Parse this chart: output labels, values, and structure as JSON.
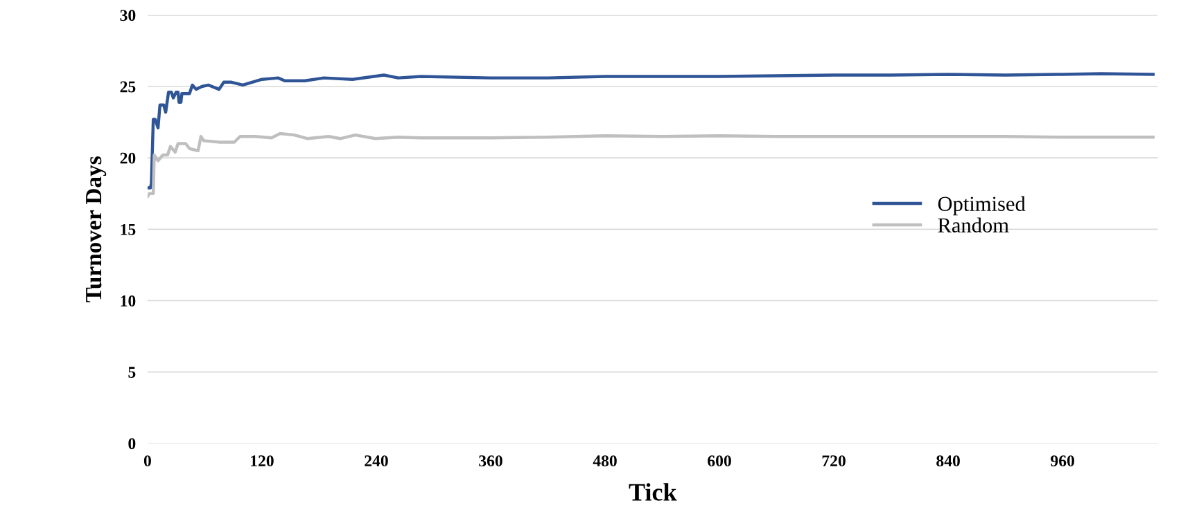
{
  "chart_data": {
    "type": "line",
    "xlabel": "Tick",
    "ylabel": "Turnover Days",
    "xlim": [
      0,
      1060
    ],
    "ylim": [
      0,
      30
    ],
    "xticks": [
      0,
      120,
      240,
      360,
      480,
      600,
      720,
      840,
      960
    ],
    "yticks": [
      0,
      5,
      10,
      15,
      20,
      25,
      30
    ],
    "grid": "y",
    "legend": "right",
    "marker": "none",
    "line_style": "solid",
    "series": [
      {
        "name": "Optimised",
        "color": "#2f5597",
        "x": [
          0,
          3,
          4,
          6,
          8,
          11,
          13,
          17,
          19,
          22,
          25,
          27,
          30,
          32,
          33,
          35,
          36,
          44,
          47,
          51,
          57,
          64,
          75,
          80,
          88,
          100,
          120,
          137,
          144,
          165,
          185,
          215,
          248,
          263,
          287,
          360,
          420,
          480,
          540,
          600,
          660,
          720,
          780,
          840,
          900,
          960,
          1000,
          1055
        ],
        "values": [
          17.9,
          17.9,
          18.2,
          22.7,
          22.7,
          22.1,
          23.7,
          23.7,
          23.2,
          24.6,
          24.6,
          24.2,
          24.6,
          24.6,
          23.9,
          23.9,
          24.5,
          24.5,
          25.1,
          24.8,
          25.0,
          25.1,
          24.8,
          25.3,
          25.3,
          25.1,
          25.5,
          25.6,
          25.4,
          25.4,
          25.6,
          25.5,
          25.8,
          25.6,
          25.7,
          25.6,
          25.6,
          25.7,
          25.7,
          25.7,
          25.75,
          25.8,
          25.8,
          25.85,
          25.8,
          25.85,
          25.9,
          25.85
        ]
      },
      {
        "name": "Random",
        "color": "#bfbfbf",
        "x": [
          0,
          2,
          6,
          7,
          11,
          16,
          21,
          24,
          29,
          32,
          40,
          44,
          53,
          56,
          59,
          76,
          91,
          97,
          113,
          130,
          139,
          154,
          168,
          190,
          202,
          218,
          239,
          263,
          287,
          360,
          420,
          480,
          540,
          600,
          660,
          720,
          780,
          840,
          900,
          960,
          1000,
          1055
        ],
        "values": [
          17.3,
          17.5,
          17.5,
          20.2,
          19.8,
          20.2,
          20.2,
          20.8,
          20.4,
          21.0,
          21.0,
          20.65,
          20.5,
          21.5,
          21.2,
          21.1,
          21.1,
          21.5,
          21.5,
          21.4,
          21.7,
          21.6,
          21.35,
          21.5,
          21.35,
          21.6,
          21.35,
          21.45,
          21.4,
          21.4,
          21.45,
          21.55,
          21.5,
          21.55,
          21.5,
          21.5,
          21.5,
          21.5,
          21.5,
          21.45,
          21.45,
          21.45
        ]
      }
    ]
  }
}
